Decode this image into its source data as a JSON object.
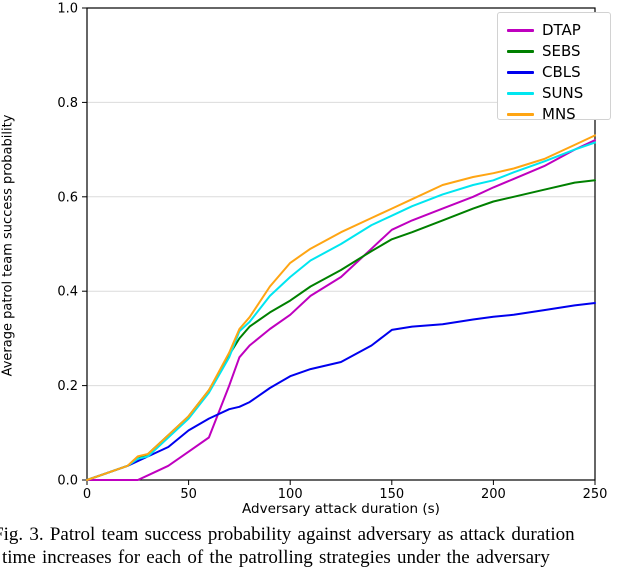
{
  "figure": {
    "caption_line1": "Fig. 3.  Patrol team success probability against adversary as attack duration",
    "caption_line2_partial": "time increases for each of the patrolling strategies under the adversary"
  },
  "chart_data": {
    "type": "line",
    "title": "",
    "xlabel": "Adversary attack duration (s)",
    "ylabel": "Average patrol team success probability",
    "xlim": [
      0,
      250
    ],
    "ylim": [
      0.0,
      1.0
    ],
    "x_ticks": [
      0,
      50,
      100,
      150,
      200,
      250
    ],
    "y_ticks": [
      "0.0",
      "0.2",
      "0.4",
      "0.6",
      "0.8",
      "1.0"
    ],
    "grid": "horizontal",
    "legend_position": "upper right",
    "x": [
      0,
      10,
      20,
      25,
      30,
      40,
      50,
      60,
      70,
      75,
      80,
      90,
      100,
      110,
      125,
      140,
      150,
      160,
      175,
      190,
      200,
      210,
      225,
      240,
      250
    ],
    "series": [
      {
        "name": "DTAP",
        "color": "#bf00bf",
        "values": [
          0,
          0,
          0,
          0,
          0.01,
          0.03,
          0.06,
          0.09,
          0.2,
          0.26,
          0.285,
          0.32,
          0.35,
          0.39,
          0.43,
          0.49,
          0.53,
          0.55,
          0.575,
          0.6,
          0.62,
          0.638,
          0.665,
          0.7,
          0.72
        ]
      },
      {
        "name": "SEBS",
        "color": "#008000",
        "values": [
          0,
          0.015,
          0.03,
          0.045,
          0.055,
          0.095,
          0.135,
          0.19,
          0.265,
          0.3,
          0.325,
          0.355,
          0.38,
          0.41,
          0.445,
          0.485,
          0.51,
          0.525,
          0.55,
          0.575,
          0.59,
          0.6,
          0.615,
          0.63,
          0.635
        ]
      },
      {
        "name": "CBLS",
        "color": "#0000ee",
        "values": [
          0,
          0.015,
          0.03,
          0.04,
          0.05,
          0.07,
          0.105,
          0.13,
          0.15,
          0.155,
          0.165,
          0.195,
          0.22,
          0.235,
          0.25,
          0.285,
          0.318,
          0.325,
          0.33,
          0.34,
          0.346,
          0.35,
          0.36,
          0.37,
          0.375
        ]
      },
      {
        "name": "SUNS",
        "color": "#00e6f0",
        "values": [
          0,
          0.015,
          0.03,
          0.045,
          0.05,
          0.09,
          0.13,
          0.185,
          0.26,
          0.315,
          0.335,
          0.39,
          0.43,
          0.465,
          0.5,
          0.54,
          0.56,
          0.58,
          0.605,
          0.625,
          0.635,
          0.652,
          0.675,
          0.7,
          0.715
        ]
      },
      {
        "name": "MNS",
        "color": "#ffa513",
        "values": [
          0,
          0.015,
          0.03,
          0.05,
          0.055,
          0.095,
          0.135,
          0.19,
          0.27,
          0.32,
          0.345,
          0.41,
          0.46,
          0.49,
          0.525,
          0.555,
          0.575,
          0.595,
          0.625,
          0.642,
          0.65,
          0.66,
          0.68,
          0.71,
          0.73
        ]
      }
    ]
  }
}
